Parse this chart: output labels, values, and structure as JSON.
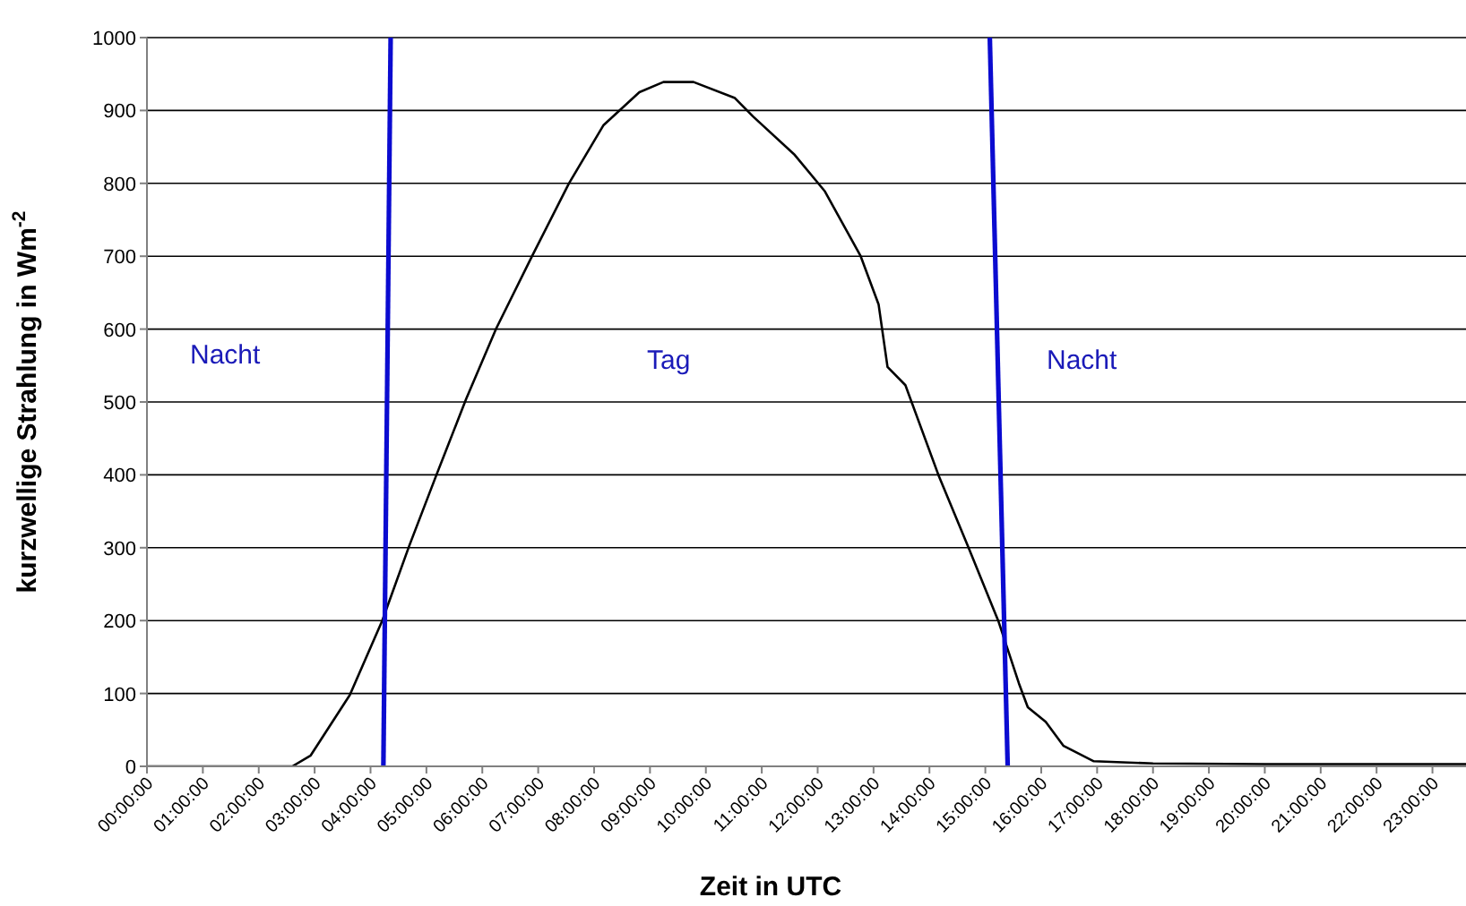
{
  "chart_data": {
    "type": "line",
    "xlabel": "Zeit in UTC",
    "ylabel": "kurzwellige Strahlung in Wm$^{-2}$",
    "series": [
      {
        "color": "#000000",
        "x": [
          0,
          2.6,
          2.93,
          3.63,
          4.21,
          4.69,
          5.18,
          5.71,
          6.25,
          6.89,
          7.55,
          8.17,
          8.81,
          9.24,
          9.78,
          10.52,
          10.84,
          11.59,
          12.13,
          12.77,
          13.09,
          13.25,
          13.57,
          14.16,
          14.69,
          15.23,
          15.6,
          15.76,
          16.08,
          16.4,
          16.94,
          18,
          20,
          22,
          23.6
        ],
        "values": [
          0,
          0,
          15,
          98,
          200,
          302,
          400,
          504,
          601,
          700,
          800,
          880,
          925,
          939,
          939,
          917,
          892,
          839,
          789,
          700,
          634,
          548,
          523,
          400,
          302,
          200,
          114,
          81,
          61,
          28,
          7,
          4,
          3,
          3,
          3
        ]
      },
      {
        "color": "#0b0bd0",
        "x": [
          4.36,
          4.23
        ],
        "values": [
          1000,
          0
        ]
      },
      {
        "color": "#0b0bd0",
        "x": [
          15.08,
          15.4
        ],
        "values": [
          1000,
          0
        ]
      }
    ],
    "xlim": [
      0,
      23.6
    ],
    "xticks": [
      {
        "value": 0,
        "label": "00:00:00"
      },
      {
        "value": 1,
        "label": "01:00:00"
      },
      {
        "value": 2,
        "label": "02:00:00"
      },
      {
        "value": 3,
        "label": "03:00:00"
      },
      {
        "value": 4,
        "label": "04:00:00"
      },
      {
        "value": 5,
        "label": "05:00:00"
      },
      {
        "value": 6,
        "label": "06:00:00"
      },
      {
        "value": 7,
        "label": "07:00:00"
      },
      {
        "value": 8,
        "label": "08:00:00"
      },
      {
        "value": 9,
        "label": "09:00:00"
      },
      {
        "value": 10,
        "label": "10:00:00"
      },
      {
        "value": 11,
        "label": "11:00:00"
      },
      {
        "value": 12,
        "label": "12:00:00"
      },
      {
        "value": 13,
        "label": "13:00:00"
      },
      {
        "value": 14,
        "label": "14:00:00"
      },
      {
        "value": 15,
        "label": "15:00:00"
      },
      {
        "value": 16,
        "label": "16:00:00"
      },
      {
        "value": 17,
        "label": "17:00:00"
      },
      {
        "value": 18,
        "label": "18:00:00"
      },
      {
        "value": 19,
        "label": "19:00:00"
      },
      {
        "value": 20,
        "label": "20:00:00"
      },
      {
        "value": 21,
        "label": "21:00:00"
      },
      {
        "value": 22,
        "label": "22:00:00"
      },
      {
        "value": 23,
        "label": "23:00:00"
      }
    ],
    "ylim": [
      0,
      1000
    ],
    "yticks": [
      0,
      100,
      200,
      300,
      400,
      500,
      600,
      700,
      800,
      900,
      1000
    ],
    "grid": "y",
    "legend": false,
    "marker": "none",
    "line_style": "solid",
    "annotations": [
      "Nacht",
      "Tag",
      "Nacht"
    ]
  }
}
